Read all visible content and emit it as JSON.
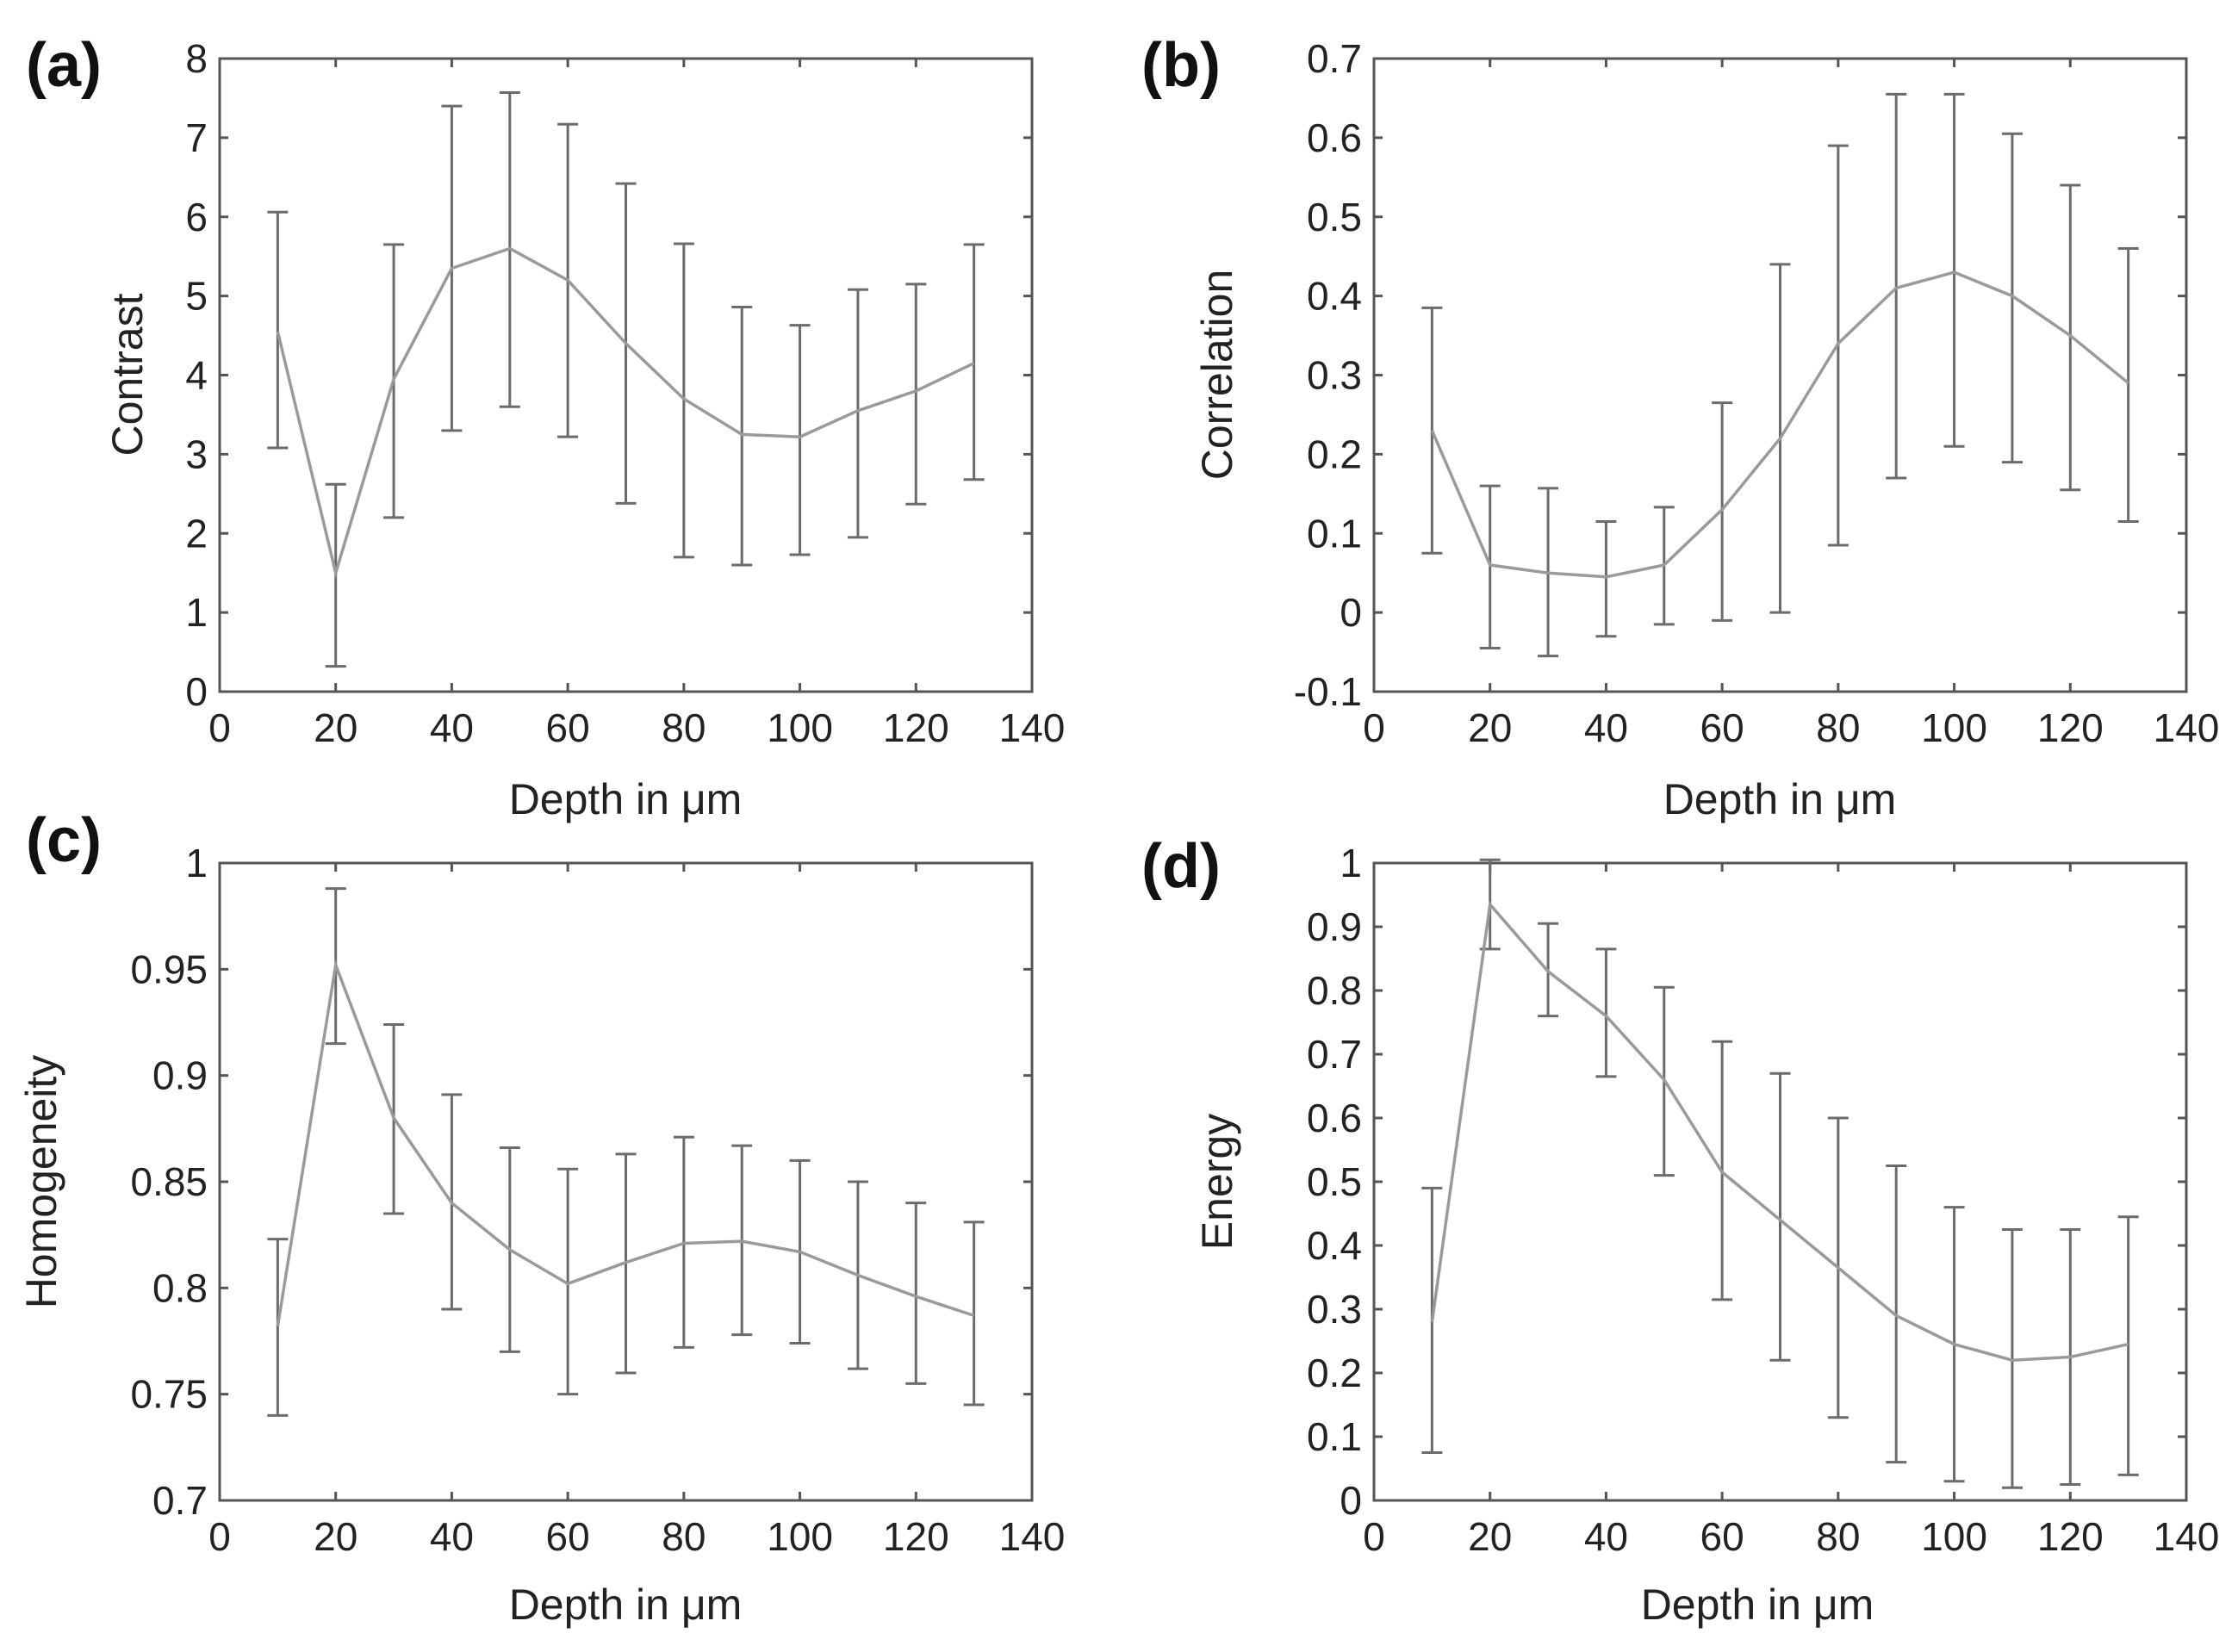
{
  "chart_data": [
    {
      "id": "a",
      "type": "line",
      "panel_label": "(a)",
      "xlabel": "Depth in μm",
      "ylabel": "Contrast",
      "xlim": [
        0,
        140
      ],
      "ylim": [
        0,
        8
      ],
      "xticks": [
        0,
        20,
        40,
        60,
        80,
        100,
        120,
        140
      ],
      "xtick_labels": [
        "0",
        "20",
        "40",
        "60",
        "80",
        "100",
        "120",
        "140"
      ],
      "yticks": [
        0,
        1,
        2,
        3,
        4,
        5,
        6,
        7,
        8
      ],
      "ytick_labels": [
        "0",
        "1",
        "2",
        "3",
        "4",
        "5",
        "6",
        "7",
        "8"
      ],
      "series": [
        {
          "name": "Contrast",
          "x": [
            10,
            20,
            30,
            40,
            50,
            60,
            70,
            80,
            90,
            100,
            110,
            120,
            130
          ],
          "y": [
            4.55,
            1.5,
            3.95,
            5.35,
            5.6,
            5.2,
            4.4,
            3.7,
            3.25,
            3.22,
            3.55,
            3.8,
            4.15
          ],
          "err_low": [
            3.08,
            0.32,
            2.2,
            3.3,
            3.6,
            3.22,
            2.38,
            1.7,
            1.6,
            1.73,
            1.95,
            2.37,
            2.68
          ],
          "err_high": [
            6.06,
            2.62,
            5.65,
            7.4,
            7.57,
            7.17,
            6.42,
            5.66,
            4.86,
            4.63,
            5.08,
            5.15,
            5.65
          ]
        }
      ]
    },
    {
      "id": "b",
      "type": "line",
      "panel_label": "(b)",
      "xlabel": "Depth in μm",
      "ylabel": "Correlation",
      "xlim": [
        0,
        140
      ],
      "ylim": [
        -0.1,
        0.7
      ],
      "xticks": [
        0,
        20,
        40,
        60,
        80,
        100,
        120,
        140
      ],
      "xtick_labels": [
        "0",
        "20",
        "40",
        "60",
        "80",
        "100",
        "120",
        "140"
      ],
      "yticks": [
        -0.1,
        0,
        0.1,
        0.2,
        0.3,
        0.4,
        0.5,
        0.6,
        0.7
      ],
      "ytick_labels": [
        "-0.1",
        "0",
        "0.1",
        "0.2",
        "0.3",
        "0.4",
        "0.5",
        "0.6",
        "0.7"
      ],
      "series": [
        {
          "name": "Correlation",
          "x": [
            10,
            20,
            30,
            40,
            50,
            60,
            70,
            80,
            90,
            100,
            110,
            120,
            130
          ],
          "y": [
            0.23,
            0.06,
            0.05,
            0.045,
            0.06,
            0.13,
            0.22,
            0.34,
            0.41,
            0.43,
            0.4,
            0.35,
            0.29
          ],
          "err_low": [
            0.075,
            -0.045,
            -0.055,
            -0.03,
            -0.015,
            -0.01,
            0.0,
            0.085,
            0.17,
            0.21,
            0.19,
            0.155,
            0.115
          ],
          "err_high": [
            0.385,
            0.16,
            0.157,
            0.115,
            0.133,
            0.265,
            0.44,
            0.59,
            0.655,
            0.655,
            0.605,
            0.54,
            0.46
          ]
        }
      ]
    },
    {
      "id": "c",
      "type": "line",
      "panel_label": "(c)",
      "xlabel": "Depth in μm",
      "ylabel": "Homogeneity",
      "xlim": [
        0,
        140
      ],
      "ylim": [
        0.7,
        1
      ],
      "xticks": [
        0,
        20,
        40,
        60,
        80,
        100,
        120,
        140
      ],
      "xtick_labels": [
        "0",
        "20",
        "40",
        "60",
        "80",
        "100",
        "120",
        "140"
      ],
      "yticks": [
        0.7,
        0.75,
        0.8,
        0.85,
        0.9,
        0.95,
        1
      ],
      "ytick_labels": [
        "0.7",
        "0.75",
        "0.8",
        "0.85",
        "0.9",
        "0.95",
        "1"
      ],
      "series": [
        {
          "name": "Homogeneity",
          "x": [
            10,
            20,
            30,
            40,
            50,
            60,
            70,
            80,
            90,
            100,
            110,
            120,
            130
          ],
          "y": [
            0.782,
            0.952,
            0.88,
            0.84,
            0.818,
            0.802,
            0.812,
            0.821,
            0.822,
            0.817,
            0.806,
            0.796,
            0.787
          ],
          "err_low": [
            0.74,
            0.915,
            0.835,
            0.79,
            0.77,
            0.75,
            0.76,
            0.772,
            0.778,
            0.774,
            0.762,
            0.755,
            0.745
          ],
          "err_high": [
            0.823,
            0.988,
            0.924,
            0.891,
            0.866,
            0.856,
            0.863,
            0.871,
            0.867,
            0.86,
            0.85,
            0.84,
            0.831
          ]
        }
      ]
    },
    {
      "id": "d",
      "type": "line",
      "panel_label": "(d)",
      "xlabel": "Depth in μm",
      "ylabel": "Energy",
      "xlim": [
        0,
        140
      ],
      "ylim": [
        0,
        1
      ],
      "xticks": [
        0,
        20,
        40,
        60,
        80,
        100,
        120,
        140
      ],
      "xtick_labels": [
        "0",
        "20",
        "40",
        "60",
        "80",
        "100",
        "120",
        "140"
      ],
      "yticks": [
        0,
        0.1,
        0.2,
        0.3,
        0.4,
        0.5,
        0.6,
        0.7,
        0.8,
        0.9,
        1
      ],
      "ytick_labels": [
        "0",
        "0.1",
        "0.2",
        "0.3",
        "0.4",
        "0.5",
        "0.6",
        "0.7",
        "0.8",
        "0.9",
        "1"
      ],
      "series": [
        {
          "name": "Energy",
          "x": [
            10,
            20,
            30,
            40,
            50,
            60,
            70,
            80,
            90,
            100,
            110,
            120,
            130
          ],
          "y": [
            0.28,
            0.935,
            0.83,
            0.76,
            0.66,
            0.515,
            0.44,
            0.365,
            0.29,
            0.245,
            0.22,
            0.225,
            0.245
          ],
          "err_low": [
            0.075,
            0.865,
            0.76,
            0.665,
            0.51,
            0.315,
            0.22,
            0.13,
            0.06,
            0.03,
            0.02,
            0.025,
            0.04
          ],
          "err_high": [
            0.49,
            1.005,
            0.905,
            0.865,
            0.805,
            0.72,
            0.67,
            0.6,
            0.525,
            0.46,
            0.425,
            0.425,
            0.445
          ]
        }
      ]
    }
  ]
}
